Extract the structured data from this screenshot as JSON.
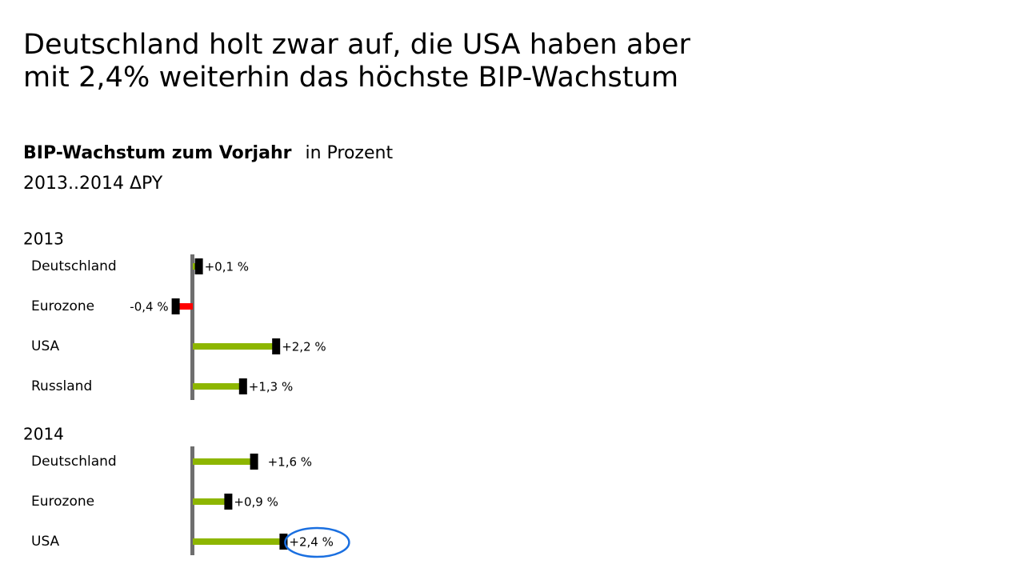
{
  "headline": {
    "line1": "Deutschland holt zwar auf, die USA haben aber",
    "line2": "mit 2,4% weiterhin das höchste BIP-Wachstum"
  },
  "subtitle": {
    "bold": "BIP-Wachstum zum Vorjahr",
    "unit": "in Prozent"
  },
  "period": "2013..2014 ΔPY",
  "colors": {
    "positive": "#8db600",
    "negative": "#ff0000",
    "axis": "#6e6e6e",
    "marker": "#000000",
    "highlight": "#1a6fe0"
  },
  "chart_data": {
    "type": "bar",
    "orientation": "horizontal",
    "title": "BIP-Wachstum zum Vorjahr",
    "unit": "in Prozent",
    "groups": [
      {
        "label": "2013",
        "items": [
          {
            "category": "Deutschland",
            "value": 0.1,
            "label": "+0,1 %"
          },
          {
            "category": "Eurozone",
            "value": -0.4,
            "label": "-0,4 %"
          },
          {
            "category": "USA",
            "value": 2.2,
            "label": "+2,2 %"
          },
          {
            "category": "Russland",
            "value": 1.3,
            "label": "+1,3 %"
          }
        ]
      },
      {
        "label": "2014",
        "items": [
          {
            "category": "Deutschland",
            "value": 1.6,
            "label": "+1,6 %"
          },
          {
            "category": "Eurozone",
            "value": 0.9,
            "label": "+0,9 %"
          },
          {
            "category": "USA",
            "value": 2.4,
            "label": "+2,4 %",
            "highlight": true
          }
        ]
      }
    ]
  }
}
